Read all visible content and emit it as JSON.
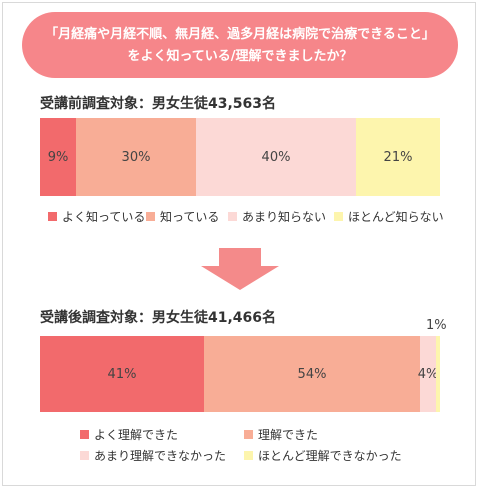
{
  "header": {
    "line1": "「月経痛や月経不順、無月経、過多月経は病院で治療できること」",
    "line2": "をよく知っている/理解できましたか？"
  },
  "colors": {
    "banner": "#f6868a",
    "dark_red": "#f26a6c",
    "salmon": "#f8ad96",
    "light_pink": "#fcd9d6",
    "light_yellow": "#fdf5ad",
    "arrow": "#f48a8a"
  },
  "chart_data": [
    {
      "type": "bar",
      "orientation": "horizontal-stacked-100",
      "title": "受講前調査対象：男女生徒43,563名",
      "series": [
        {
          "name": "よく知っている",
          "value": 9,
          "label": "9%"
        },
        {
          "name": "知っている",
          "value": 30,
          "label": "30%"
        },
        {
          "name": "あまり知らない",
          "value": 40,
          "label": "40%"
        },
        {
          "name": "ほとんど知らない",
          "value": 21,
          "label": "21%"
        }
      ],
      "legend_position": "bottom"
    },
    {
      "type": "bar",
      "orientation": "horizontal-stacked-100",
      "title": "受講後調査対象：男女生徒41,466名",
      "series": [
        {
          "name": "よく理解できた",
          "value": 41,
          "label": "41%"
        },
        {
          "name": "理解できた",
          "value": 54,
          "label": "54%"
        },
        {
          "name": "あまり理解できなかった",
          "value": 4,
          "label": "4%"
        },
        {
          "name": "ほとんど理解できなかった",
          "value": 1,
          "label": "1%"
        }
      ],
      "legend_position": "bottom"
    }
  ]
}
